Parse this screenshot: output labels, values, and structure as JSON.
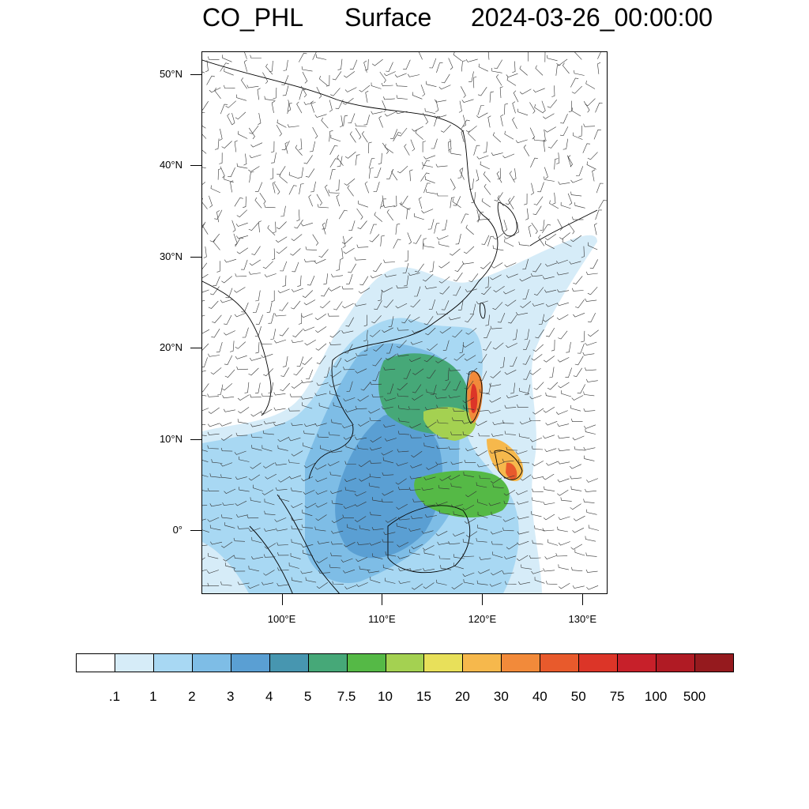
{
  "title": {
    "species": "CO_PHL",
    "level": "Surface",
    "datetime": "2024-03-26_00:00:00"
  },
  "map": {
    "lat_range": [
      -7,
      52.5
    ],
    "lon_range": [
      92,
      132.5
    ],
    "lat_ticks": [
      "50°N",
      "40°N",
      "30°N",
      "20°N",
      "10°N",
      "0°"
    ],
    "lat_values": [
      50,
      40,
      30,
      20,
      10,
      0
    ],
    "lon_ticks": [
      "100°E",
      "110°E",
      "120°E",
      "130°E"
    ],
    "lon_values": [
      100,
      110,
      120,
      130
    ],
    "field": "CO concentration with surface wind barbs",
    "coastline_color": "#000000"
  },
  "colorbar": {
    "labels": [
      ".1",
      "1",
      "2",
      "3",
      "4",
      "5",
      "7.5",
      "10",
      "15",
      "20",
      "30",
      "40",
      "50",
      "75",
      "100",
      "500"
    ],
    "colors": [
      "#ffffff",
      "#d6ecf8",
      "#a8d8f3",
      "#7ebde6",
      "#5a9fd3",
      "#4796b0",
      "#46a878",
      "#55b946",
      "#a4d151",
      "#e8e05a",
      "#f6b84c",
      "#f28a3a",
      "#e85a2c",
      "#dc3528",
      "#c7202a",
      "#b01b24",
      "#951a1e"
    ]
  }
}
